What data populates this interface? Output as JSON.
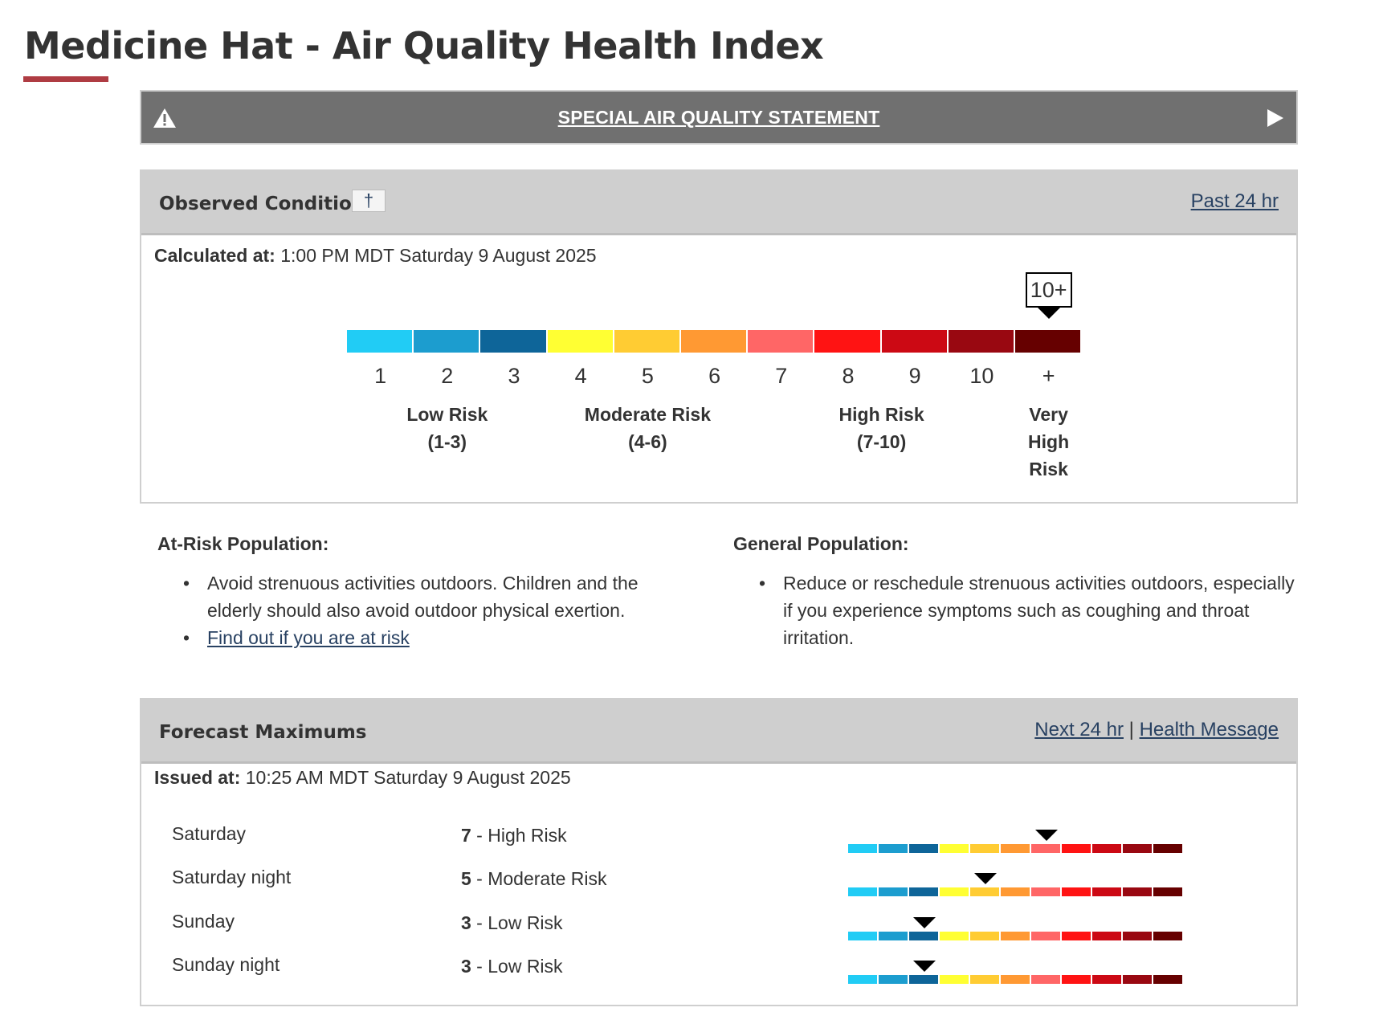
{
  "page": {
    "title": "Medicine Hat - Air Quality Health Index"
  },
  "alert": {
    "label": "SPECIAL AIR QUALITY STATEMENT",
    "icon": "warning-icon",
    "expand_icon": "play-icon"
  },
  "observed": {
    "title": "Observed Conditions",
    "dagger": "†",
    "past_link": "Past 24 hr",
    "calc_label": "Calculated at:",
    "calc_value": " 1:00 PM MDT Saturday 9 August 2025",
    "current_value_label": "10+",
    "current_index": 11
  },
  "scale": {
    "colors": [
      "#21ccf5",
      "#1c9dcf",
      "#0e6599",
      "#ffff33",
      "#ffcc33",
      "#ff9933",
      "#ff6666",
      "#ff1313",
      "#cc0914",
      "#990811",
      "#660000"
    ],
    "ticks": [
      "1",
      "2",
      "3",
      "4",
      "5",
      "6",
      "7",
      "8",
      "9",
      "10",
      "+"
    ],
    "risk_labels": [
      {
        "line1": "Low Risk",
        "line2": "(1-3)",
        "line3": ""
      },
      {
        "line1": "Moderate Risk",
        "line2": "(4-6)",
        "line3": ""
      },
      {
        "line1": "High Risk",
        "line2": "(7-10)",
        "line3": ""
      },
      {
        "line1": "Very",
        "line2": "High",
        "line3": "Risk"
      }
    ]
  },
  "at_risk": {
    "heading": "At-Risk Population:",
    "items": [
      "Avoid strenuous activities outdoors. Children and the elderly should also avoid outdoor physical exertion."
    ],
    "link": "Find out if you are at risk"
  },
  "general": {
    "heading": "General Population:",
    "items": [
      "Reduce or reschedule strenuous activities outdoors, especially if you experience symptoms such as coughing and throat irritation."
    ]
  },
  "forecast": {
    "title": "Forecast Maximums",
    "next_link": "Next 24 hr",
    "separator": "|",
    "health_link": "Health Message",
    "issued_label": "Issued at:",
    "issued_value": " 10:25 AM MDT Saturday 9 August 2025",
    "rows": [
      {
        "period": "Saturday",
        "value": "7",
        "risk": " - High Risk",
        "index": 7
      },
      {
        "period": "Saturday night",
        "value": "5",
        "risk": " - Moderate Risk",
        "index": 5
      },
      {
        "period": "Sunday",
        "value": "3",
        "risk": " - Low Risk",
        "index": 3
      },
      {
        "period": "Sunday night",
        "value": "3",
        "risk": " - Low Risk",
        "index": 3
      }
    ]
  }
}
